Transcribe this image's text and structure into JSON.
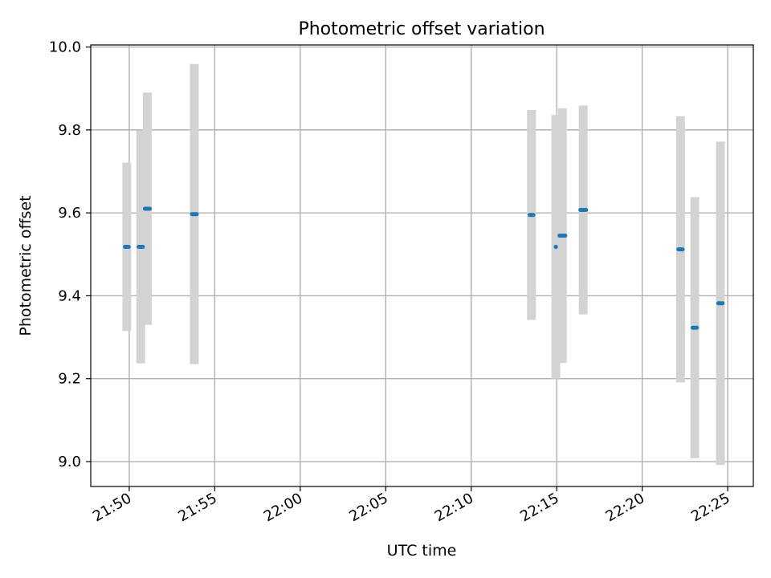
{
  "chart_data": {
    "type": "scatter",
    "title": "Photometric offset variation",
    "xlabel": "UTC time",
    "ylabel": "Photometric offset",
    "xlim": [
      "21:47:45",
      "22:26:30"
    ],
    "ylim": [
      8.94,
      10.005
    ],
    "grid": true,
    "x_ticks": [
      "21:50",
      "21:55",
      "22:00",
      "22:05",
      "22:10",
      "22:15",
      "22:20",
      "22:25"
    ],
    "y_ticks": [
      9.0,
      9.2,
      9.4,
      9.6,
      9.8,
      10.0
    ],
    "y_tick_labels": [
      "9.0",
      "9.2",
      "9.4",
      "9.6",
      "9.8",
      "10.0"
    ],
    "colors": {
      "marker": "#1f77b4",
      "errorbar": "#d3d3d3",
      "grid": "#b0b0b0"
    },
    "points": [
      {
        "t": "21:49:45",
        "t_end": "21:49:58",
        "y": 9.518,
        "yerr": 0.203
      },
      {
        "t": "21:50:33",
        "t_end": "21:50:48",
        "y": 9.518,
        "yerr": 0.281
      },
      {
        "t": "21:50:55",
        "t_end": "21:51:12",
        "y": 9.61,
        "yerr": 0.28
      },
      {
        "t": "21:53:40",
        "t_end": "21:53:57",
        "y": 9.597,
        "yerr": 0.362
      },
      {
        "t": "22:13:25",
        "t_end": "22:13:38",
        "y": 9.595,
        "yerr": 0.253
      },
      {
        "t": "22:14:57",
        "t_end": "22:14:57",
        "y": 9.518,
        "yerr": 0.318
      },
      {
        "t": "22:15:10",
        "t_end": "22:15:30",
        "y": 9.545,
        "yerr": 0.307
      },
      {
        "t": "22:16:23",
        "t_end": "22:16:43",
        "y": 9.607,
        "yerr": 0.252
      },
      {
        "t": "22:22:07",
        "t_end": "22:22:22",
        "y": 9.512,
        "yerr": 0.321
      },
      {
        "t": "22:22:57",
        "t_end": "22:23:12",
        "y": 9.323,
        "yerr": 0.315
      },
      {
        "t": "22:24:27",
        "t_end": "22:24:42",
        "y": 9.382,
        "yerr": 0.39
      }
    ]
  }
}
